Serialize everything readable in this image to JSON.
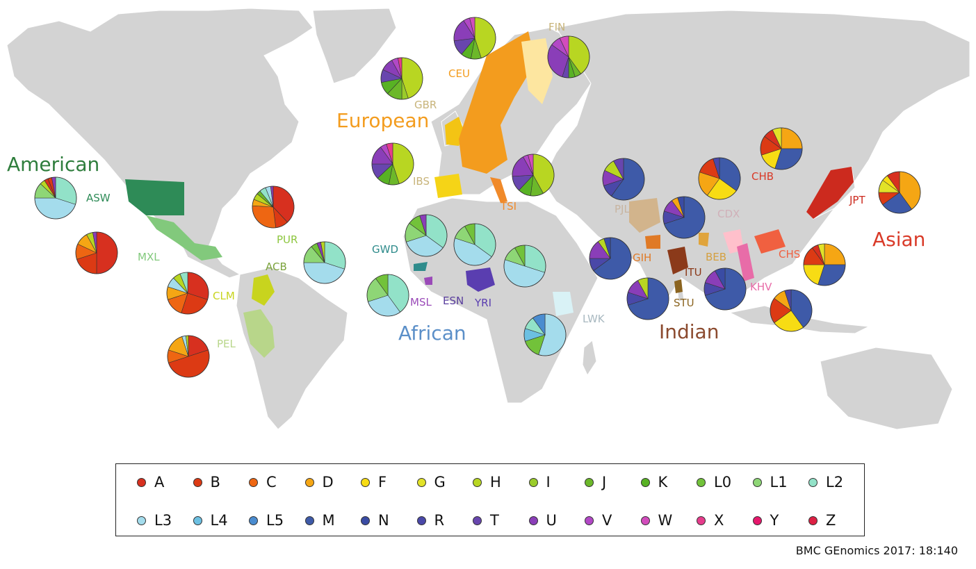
{
  "legend": [
    {
      "label": "A",
      "color": "#d7301f"
    },
    {
      "label": "B",
      "color": "#dc3a14"
    },
    {
      "label": "C",
      "color": "#ee6612"
    },
    {
      "label": "D",
      "color": "#f5a614"
    },
    {
      "label": "F",
      "color": "#f7dc14"
    },
    {
      "label": "G",
      "color": "#e2e228"
    },
    {
      "label": "H",
      "color": "#b8d622"
    },
    {
      "label": "I",
      "color": "#9acc2a"
    },
    {
      "label": "J",
      "color": "#6cb82a"
    },
    {
      "label": "K",
      "color": "#58b224"
    },
    {
      "label": "L0",
      "color": "#72c23a"
    },
    {
      "label": "L1",
      "color": "#8ed676"
    },
    {
      "label": "L2",
      "color": "#92e2c8"
    },
    {
      "label": "L3",
      "color": "#a4dcec"
    },
    {
      "label": "L4",
      "color": "#6cc0e2"
    },
    {
      "label": "L5",
      "color": "#4a8cd0"
    },
    {
      "label": "M",
      "color": "#3e5aa8"
    },
    {
      "label": "N",
      "color": "#3a4ca4"
    },
    {
      "label": "R",
      "color": "#4a48a8"
    },
    {
      "label": "T",
      "color": "#6846ae"
    },
    {
      "label": "U",
      "color": "#8a3eb8"
    },
    {
      "label": "V",
      "color": "#b248c6"
    },
    {
      "label": "W",
      "color": "#d24cbc"
    },
    {
      "label": "X",
      "color": "#e63c8c"
    },
    {
      "label": "Y",
      "color": "#e6186c"
    },
    {
      "label": "Z",
      "color": "#dc2044"
    }
  ],
  "groups": [
    {
      "name": "American",
      "color": "#2e7d3c"
    },
    {
      "name": "European",
      "color": "#f39c1e"
    },
    {
      "name": "African",
      "color": "#5b8fc8"
    },
    {
      "name": "Indian",
      "color": "#8b4a2e"
    },
    {
      "name": "Asian",
      "color": "#d93a28"
    }
  ],
  "populations": [
    {
      "code": "ASW",
      "color": "#2e8b57",
      "haplo": {
        "L2": 0.3,
        "L3": 0.45,
        "L1": 0.12,
        "H": 0.04,
        "A": 0.03,
        "B": 0.03,
        "U": 0.03
      }
    },
    {
      "code": "PUR",
      "color": "#8dc63f",
      "haplo": {
        "A": 0.38,
        "B": 0.1,
        "C": 0.28,
        "D": 0.05,
        "H": 0.05,
        "J": 0.03,
        "L2": 0.05,
        "L3": 0.04,
        "U": 0.02
      }
    },
    {
      "code": "MXL",
      "color": "#82c97c",
      "haplo": {
        "A": 0.5,
        "B": 0.2,
        "C": 0.12,
        "D": 0.1,
        "H": 0.05,
        "U": 0.03
      }
    },
    {
      "code": "ACB",
      "color": "#7ba33c",
      "haplo": {
        "L2": 0.3,
        "L3": 0.45,
        "L1": 0.14,
        "L0": 0.05,
        "U": 0.03,
        "H": 0.03
      }
    },
    {
      "code": "CLM",
      "color": "#c8d41e",
      "haplo": {
        "A": 0.3,
        "B": 0.25,
        "C": 0.15,
        "D": 0.1,
        "L3": 0.08,
        "H": 0.06,
        "L2": 0.06
      }
    },
    {
      "code": "PEL",
      "color": "#b8d68a",
      "haplo": {
        "A": 0.2,
        "B": 0.5,
        "C": 0.1,
        "D": 0.15,
        "L3": 0.03,
        "H": 0.02
      }
    },
    {
      "code": "GBR",
      "color": "#f3c414",
      "haplo": {
        "H": 0.45,
        "I": 0.05,
        "J": 0.12,
        "K": 0.1,
        "T": 0.1,
        "U": 0.1,
        "V": 0.05,
        "X": 0.03
      }
    },
    {
      "code": "CEU",
      "color": "#f39c1e",
      "haplo": {
        "H": 0.45,
        "J": 0.08,
        "K": 0.08,
        "T": 0.12,
        "U": 0.18,
        "V": 0.05,
        "W": 0.04
      }
    },
    {
      "code": "FIN",
      "color": "#fde6a0",
      "haplo": {
        "H": 0.4,
        "J": 0.05,
        "K": 0.05,
        "T": 0.05,
        "U": 0.3,
        "V": 0.08,
        "W": 0.07
      }
    },
    {
      "code": "IBS",
      "color": "#f5d417",
      "haplo": {
        "H": 0.45,
        "J": 0.08,
        "K": 0.1,
        "T": 0.12,
        "U": 0.15,
        "V": 0.05,
        "X": 0.05
      }
    },
    {
      "code": "TSI",
      "color": "#f08a2a",
      "haplo": {
        "H": 0.42,
        "J": 0.1,
        "K": 0.1,
        "T": 0.12,
        "U": 0.18,
        "V": 0.04,
        "W": 0.04
      }
    },
    {
      "code": "GWD",
      "color": "#2e8b8b",
      "haplo": {
        "L2": 0.35,
        "L3": 0.35,
        "L1": 0.15,
        "L0": 0.1,
        "U": 0.05
      }
    },
    {
      "code": "MSL",
      "color": "#9a4ab8",
      "haplo": {
        "L2": 0.4,
        "L3": 0.3,
        "L1": 0.2,
        "L0": 0.1
      }
    },
    {
      "code": "ESN",
      "color": "#5a3e9e",
      "haplo": {
        "L2": 0.35,
        "L3": 0.45,
        "L1": 0.12,
        "L0": 0.08
      }
    },
    {
      "code": "YRI",
      "color": "#5a3eb0",
      "haplo": {
        "L2": 0.3,
        "L3": 0.5,
        "L1": 0.12,
        "L0": 0.08
      }
    },
    {
      "code": "LWK",
      "color": "#d9f2f6",
      "haplo": {
        "L3": 0.55,
        "L0": 0.15,
        "L4": 0.1,
        "L2": 0.1,
        "L5": 0.1
      }
    },
    {
      "code": "PJL",
      "color": "#d2b48c",
      "haplo": {
        "M": 0.6,
        "R": 0.1,
        "U": 0.12,
        "H": 0.1,
        "T": 0.08
      }
    },
    {
      "code": "GIH",
      "color": "#e07a26",
      "haplo": {
        "M": 0.65,
        "R": 0.1,
        "U": 0.15,
        "H": 0.05,
        "N": 0.05
      }
    },
    {
      "code": "BEB",
      "color": "#e0a43c",
      "haplo": {
        "M": 0.7,
        "R": 0.1,
        "U": 0.1,
        "D": 0.05,
        "N": 0.05
      }
    },
    {
      "code": "ITU",
      "color": "#8b3a1a",
      "haplo": {
        "M": 0.7,
        "R": 0.1,
        "U": 0.12,
        "N": 0.08
      }
    },
    {
      "code": "STU",
      "color": "#8b6420",
      "haplo": {
        "M": 0.7,
        "R": 0.1,
        "U": 0.12,
        "H": 0.08
      }
    },
    {
      "code": "CDX",
      "color": "#ffc0cb",
      "haplo": {
        "M": 0.35,
        "F": 0.25,
        "D": 0.2,
        "B": 0.15,
        "R": 0.05
      }
    },
    {
      "code": "KHV",
      "color": "#e86ca8",
      "haplo": {
        "M": 0.4,
        "F": 0.25,
        "B": 0.2,
        "D": 0.1,
        "R": 0.05
      }
    },
    {
      "code": "CHB",
      "color": "#d93a28",
      "haplo": {
        "D": 0.25,
        "M": 0.3,
        "F": 0.15,
        "B": 0.15,
        "A": 0.08,
        "G": 0.07
      }
    },
    {
      "code": "CHS",
      "color": "#f06040",
      "haplo": {
        "D": 0.25,
        "M": 0.3,
        "F": 0.2,
        "B": 0.15,
        "A": 0.05,
        "G": 0.05
      }
    },
    {
      "code": "JPT",
      "color": "#cc2a1e",
      "haplo": {
        "D": 0.4,
        "M": 0.25,
        "B": 0.1,
        "G": 0.1,
        "F": 0.05,
        "A": 0.1
      }
    }
  ],
  "citation": "BMC GEnomics 2017: 18:140"
}
